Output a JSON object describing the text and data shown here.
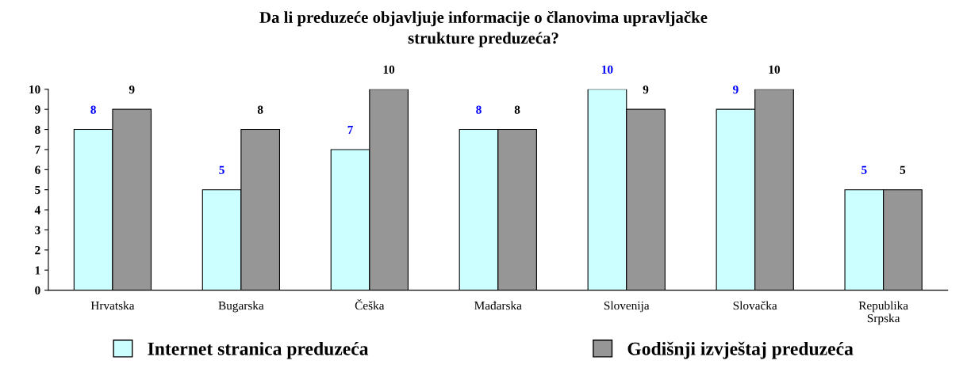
{
  "chart_data": {
    "type": "bar",
    "title": "Da li preduzeće objavljuje informacije o članovima upravljačke\nstrukture preduzeća?",
    "categories": [
      "Hrvatska",
      "Bugarska",
      "Češka",
      "Mađarska",
      "Slovenija",
      "Slovačka",
      "Republika\nSrpska"
    ],
    "series": [
      {
        "name": "Internet stranica preduzeća",
        "color": "#ccffff",
        "values": [
          8,
          5,
          7,
          8,
          10,
          9,
          5
        ]
      },
      {
        "name": "Godišnji izvještaj preduzeća",
        "color": "#969696",
        "values": [
          9,
          8,
          10,
          8,
          9,
          10,
          5
        ]
      }
    ],
    "ylim": [
      0,
      10
    ],
    "yticks": [
      0,
      1,
      2,
      3,
      4,
      5,
      6,
      7,
      8,
      9,
      10
    ],
    "grid": false,
    "legend": "bottom",
    "data_labels": true
  }
}
